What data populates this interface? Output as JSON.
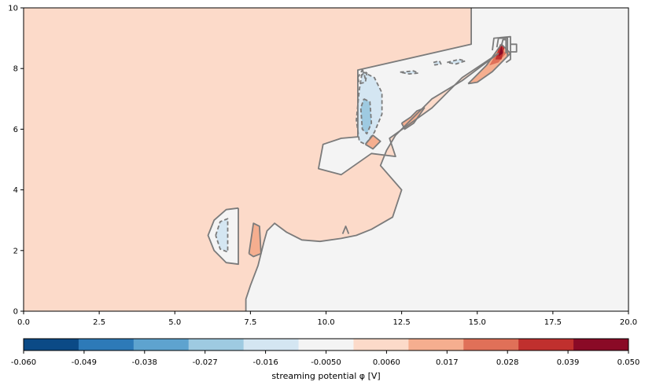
{
  "chart_data": {
    "type": "heatmap",
    "xlim": [
      0,
      20
    ],
    "ylim": [
      0,
      10
    ],
    "x_ticks": [
      "0.0",
      "2.5",
      "5.0",
      "7.5",
      "10.0",
      "12.5",
      "15.0",
      "17.5",
      "20.0"
    ],
    "y_ticks": [
      "0",
      "2",
      "4",
      "6",
      "8",
      "10"
    ],
    "colorbar": {
      "label": "streaming potential φ [V]",
      "levels": [
        -0.06,
        -0.049,
        -0.038,
        -0.027,
        -0.016,
        -0.005,
        0.006,
        0.017,
        0.028,
        0.039,
        0.05
      ],
      "tick_labels": [
        "-0.060",
        "-0.049",
        "-0.038",
        "-0.027",
        "-0.016",
        "-0.0050",
        "0.0060",
        "0.017",
        "0.028",
        "0.039",
        "0.050"
      ],
      "colors": [
        "#0b4a86",
        "#2d7ab8",
        "#5ea3cf",
        "#9ecae1",
        "#d4e6f2",
        "#f4f4f4",
        "#fcdac9",
        "#f5ae8f",
        "#e07058",
        "#c0302e",
        "#8a0a26"
      ]
    },
    "regions": [
      {
        "level_index": 6,
        "points": [
          [
            0,
            10
          ],
          [
            14.8,
            10
          ],
          [
            14.8,
            8.8
          ],
          [
            11.05,
            7.95
          ],
          [
            11.05,
            5.75
          ],
          [
            10.5,
            5.7
          ],
          [
            9.9,
            5.5
          ],
          [
            9.75,
            4.7
          ],
          [
            10.5,
            4.5
          ],
          [
            11.5,
            5.2
          ],
          [
            12.3,
            5.1
          ],
          [
            12.1,
            5.7
          ],
          [
            13.5,
            6.7
          ],
          [
            14.5,
            7.7
          ],
          [
            15.7,
            8.5
          ],
          [
            14.5,
            7.6
          ],
          [
            13.5,
            7.0
          ],
          [
            12.3,
            5.8
          ],
          [
            12.0,
            5.3
          ],
          [
            11.8,
            4.8
          ],
          [
            12.5,
            4.0
          ],
          [
            12.2,
            3.1
          ],
          [
            11.5,
            2.7
          ],
          [
            11.0,
            2.5
          ],
          [
            10.5,
            2.4
          ],
          [
            9.8,
            2.3
          ],
          [
            9.2,
            2.35
          ],
          [
            8.7,
            2.6
          ],
          [
            8.3,
            2.9
          ],
          [
            8.05,
            2.65
          ],
          [
            7.95,
            2.3
          ],
          [
            7.75,
            1.5
          ],
          [
            7.5,
            0.85
          ],
          [
            7.35,
            0.4
          ],
          [
            7.35,
            0
          ],
          [
            0,
            0
          ]
        ]
      },
      {
        "level_index": 5,
        "points": [
          [
            6.1,
            2.5
          ],
          [
            6.3,
            3.0
          ],
          [
            6.7,
            3.35
          ],
          [
            7.1,
            3.4
          ],
          [
            7.1,
            1.55
          ],
          [
            6.7,
            1.6
          ],
          [
            6.3,
            2.0
          ]
        ]
      },
      {
        "level_index": 4,
        "points": [
          [
            11.2,
            7.9
          ],
          [
            11.6,
            7.7
          ],
          [
            11.85,
            7.2
          ],
          [
            11.85,
            6.5
          ],
          [
            11.6,
            5.9
          ],
          [
            11.3,
            5.5
          ],
          [
            11.1,
            5.6
          ],
          [
            11.0,
            6.3
          ],
          [
            11.1,
            7.3
          ]
        ]
      },
      {
        "level_index": 3,
        "points": [
          [
            11.25,
            7.0
          ],
          [
            11.45,
            6.9
          ],
          [
            11.5,
            6.2
          ],
          [
            11.35,
            5.85
          ],
          [
            11.2,
            6.0
          ],
          [
            11.15,
            6.7
          ]
        ]
      },
      {
        "level_index": 4,
        "points": [
          [
            6.35,
            2.5
          ],
          [
            6.5,
            2.95
          ],
          [
            6.75,
            3.05
          ],
          [
            6.75,
            1.95
          ],
          [
            6.5,
            2.05
          ]
        ]
      },
      {
        "level_index": 4,
        "points": [
          [
            12.45,
            7.88
          ],
          [
            12.9,
            7.92
          ],
          [
            13.05,
            7.85
          ],
          [
            12.75,
            7.82
          ]
        ]
      },
      {
        "level_index": 4,
        "points": [
          [
            13.55,
            8.2
          ],
          [
            13.75,
            8.25
          ],
          [
            13.8,
            8.15
          ],
          [
            13.6,
            8.12
          ]
        ]
      },
      {
        "level_index": 4,
        "points": [
          [
            14.0,
            8.2
          ],
          [
            14.4,
            8.3
          ],
          [
            14.6,
            8.25
          ],
          [
            14.3,
            8.15
          ]
        ]
      },
      {
        "level_index": 7,
        "points": [
          [
            7.45,
            1.9
          ],
          [
            7.6,
            2.9
          ],
          [
            7.8,
            2.8
          ],
          [
            7.85,
            1.9
          ],
          [
            7.6,
            1.8
          ]
        ]
      },
      {
        "level_index": 7,
        "points": [
          [
            11.3,
            5.5
          ],
          [
            11.55,
            5.8
          ],
          [
            11.8,
            5.6
          ],
          [
            11.55,
            5.35
          ]
        ]
      },
      {
        "level_index": 7,
        "points": [
          [
            12.5,
            6.2
          ],
          [
            12.8,
            6.4
          ],
          [
            13.0,
            6.6
          ],
          [
            13.25,
            6.7
          ],
          [
            12.9,
            6.2
          ],
          [
            12.6,
            6.0
          ]
        ]
      },
      {
        "level_index": 7,
        "points": [
          [
            14.7,
            7.5
          ],
          [
            15.3,
            8.1
          ],
          [
            15.8,
            8.8
          ],
          [
            16.1,
            8.5
          ],
          [
            15.5,
            7.9
          ],
          [
            15.0,
            7.55
          ]
        ]
      },
      {
        "level_index": 8,
        "points": [
          [
            15.4,
            8.1
          ],
          [
            15.75,
            8.7
          ],
          [
            15.95,
            8.5
          ],
          [
            15.7,
            8.2
          ]
        ]
      },
      {
        "level_index": 9,
        "points": [
          [
            15.6,
            8.3
          ],
          [
            15.75,
            8.8
          ],
          [
            15.9,
            8.7
          ],
          [
            15.8,
            8.3
          ]
        ]
      },
      {
        "level_index": 10,
        "points": [
          [
            15.7,
            8.4
          ],
          [
            15.8,
            8.75
          ],
          [
            15.85,
            8.5
          ]
        ]
      }
    ],
    "contours": [
      {
        "style": "solid",
        "points": [
          [
            14.8,
            10
          ],
          [
            14.8,
            8.8
          ],
          [
            11.05,
            7.95
          ],
          [
            11.05,
            5.75
          ],
          [
            10.5,
            5.7
          ],
          [
            9.9,
            5.5
          ],
          [
            9.75,
            4.7
          ],
          [
            10.5,
            4.5
          ],
          [
            11.5,
            5.2
          ],
          [
            12.3,
            5.1
          ],
          [
            12.1,
            5.7
          ],
          [
            13.5,
            6.7
          ],
          [
            14.5,
            7.7
          ],
          [
            15.7,
            8.5
          ]
        ]
      },
      {
        "style": "solid",
        "points": [
          [
            15.7,
            8.5
          ],
          [
            14.5,
            7.6
          ],
          [
            13.5,
            7.0
          ],
          [
            12.3,
            5.8
          ],
          [
            12.0,
            5.3
          ],
          [
            11.8,
            4.8
          ],
          [
            12.5,
            4.0
          ],
          [
            12.2,
            3.1
          ],
          [
            11.5,
            2.7
          ],
          [
            11.0,
            2.5
          ],
          [
            10.5,
            2.4
          ],
          [
            9.8,
            2.3
          ],
          [
            9.2,
            2.35
          ],
          [
            8.7,
            2.6
          ],
          [
            8.3,
            2.9
          ],
          [
            8.05,
            2.65
          ],
          [
            7.95,
            2.3
          ],
          [
            7.75,
            1.5
          ],
          [
            7.5,
            0.85
          ],
          [
            7.35,
            0.4
          ],
          [
            7.35,
            0
          ]
        ]
      },
      {
        "style": "solid",
        "points": [
          [
            7.1,
            3.4
          ],
          [
            6.7,
            3.35
          ],
          [
            6.3,
            3.0
          ],
          [
            6.1,
            2.5
          ],
          [
            6.3,
            2.0
          ],
          [
            6.7,
            1.6
          ],
          [
            7.1,
            1.55
          ],
          [
            7.1,
            3.4
          ]
        ]
      },
      {
        "style": "solid",
        "points": [
          [
            10.55,
            2.55
          ],
          [
            10.65,
            2.8
          ],
          [
            10.75,
            2.55
          ]
        ]
      },
      {
        "style": "solid",
        "points": [
          [
            7.45,
            1.9
          ],
          [
            7.6,
            2.9
          ],
          [
            7.8,
            2.8
          ],
          [
            7.85,
            1.9
          ],
          [
            7.6,
            1.8
          ],
          [
            7.45,
            1.9
          ]
        ]
      },
      {
        "style": "solid",
        "points": [
          [
            11.3,
            5.5
          ],
          [
            11.55,
            5.8
          ],
          [
            11.8,
            5.6
          ],
          [
            11.55,
            5.35
          ],
          [
            11.3,
            5.5
          ]
        ]
      },
      {
        "style": "solid",
        "points": [
          [
            12.5,
            6.2
          ],
          [
            12.8,
            6.4
          ],
          [
            13.0,
            6.6
          ],
          [
            13.25,
            6.7
          ],
          [
            12.9,
            6.2
          ],
          [
            12.6,
            6.0
          ],
          [
            12.5,
            6.2
          ]
        ]
      },
      {
        "style": "solid",
        "points": [
          [
            14.7,
            7.5
          ],
          [
            15.3,
            8.1
          ],
          [
            15.8,
            8.8
          ],
          [
            16.1,
            8.5
          ],
          [
            15.5,
            7.9
          ],
          [
            15.0,
            7.55
          ],
          [
            14.7,
            7.5
          ]
        ]
      },
      {
        "style": "solid",
        "points": [
          [
            15.5,
            8.6
          ],
          [
            15.55,
            9.0
          ],
          [
            16.1,
            9.05
          ],
          [
            16.1,
            8.3
          ],
          [
            15.95,
            8.2
          ]
        ]
      },
      {
        "style": "solid",
        "points": [
          [
            15.65,
            8.7
          ],
          [
            15.7,
            9.0
          ],
          [
            16.0,
            9.0
          ],
          [
            16.0,
            8.4
          ]
        ]
      },
      {
        "style": "solid",
        "points": [
          [
            15.8,
            8.75
          ],
          [
            15.85,
            8.95
          ],
          [
            15.95,
            8.95
          ],
          [
            15.95,
            8.5
          ]
        ]
      },
      {
        "style": "solid",
        "points": [
          [
            16.1,
            8.8
          ],
          [
            16.3,
            8.8
          ],
          [
            16.3,
            8.55
          ],
          [
            16.1,
            8.55
          ]
        ]
      },
      {
        "style": "dashed",
        "points": [
          [
            11.2,
            7.9
          ],
          [
            11.6,
            7.7
          ],
          [
            11.85,
            7.2
          ],
          [
            11.85,
            6.5
          ],
          [
            11.6,
            5.9
          ],
          [
            11.3,
            5.5
          ],
          [
            11.1,
            5.6
          ],
          [
            11.0,
            6.3
          ],
          [
            11.1,
            7.3
          ],
          [
            11.2,
            7.9
          ]
        ]
      },
      {
        "style": "dashed",
        "points": [
          [
            11.25,
            7.0
          ],
          [
            11.45,
            6.9
          ],
          [
            11.5,
            6.2
          ],
          [
            11.35,
            5.85
          ],
          [
            11.2,
            6.0
          ],
          [
            11.15,
            6.7
          ],
          [
            11.25,
            7.0
          ]
        ]
      },
      {
        "style": "dashed",
        "points": [
          [
            11.05,
            7.7
          ],
          [
            11.2,
            7.95
          ],
          [
            11.35,
            7.85
          ],
          [
            11.3,
            7.55
          ],
          [
            11.1,
            7.5
          ],
          [
            11.05,
            7.7
          ]
        ]
      },
      {
        "style": "dashed",
        "points": [
          [
            11.15,
            7.75
          ],
          [
            11.25,
            7.85
          ],
          [
            11.3,
            7.65
          ]
        ]
      },
      {
        "style": "dashed",
        "points": [
          [
            6.35,
            2.5
          ],
          [
            6.5,
            2.95
          ],
          [
            6.75,
            3.05
          ],
          [
            6.75,
            1.95
          ],
          [
            6.5,
            2.05
          ],
          [
            6.35,
            2.5
          ]
        ]
      },
      {
        "style": "dashed",
        "points": [
          [
            12.45,
            7.88
          ],
          [
            12.9,
            7.92
          ],
          [
            13.05,
            7.85
          ],
          [
            12.75,
            7.82
          ],
          [
            12.45,
            7.88
          ]
        ]
      },
      {
        "style": "dashed",
        "points": [
          [
            13.55,
            8.2
          ],
          [
            13.75,
            8.25
          ],
          [
            13.8,
            8.15
          ],
          [
            13.6,
            8.12
          ],
          [
            13.55,
            8.2
          ]
        ]
      },
      {
        "style": "dashed",
        "points": [
          [
            14.0,
            8.2
          ],
          [
            14.4,
            8.3
          ],
          [
            14.6,
            8.25
          ],
          [
            14.3,
            8.15
          ],
          [
            14.0,
            8.2
          ]
        ]
      }
    ]
  }
}
